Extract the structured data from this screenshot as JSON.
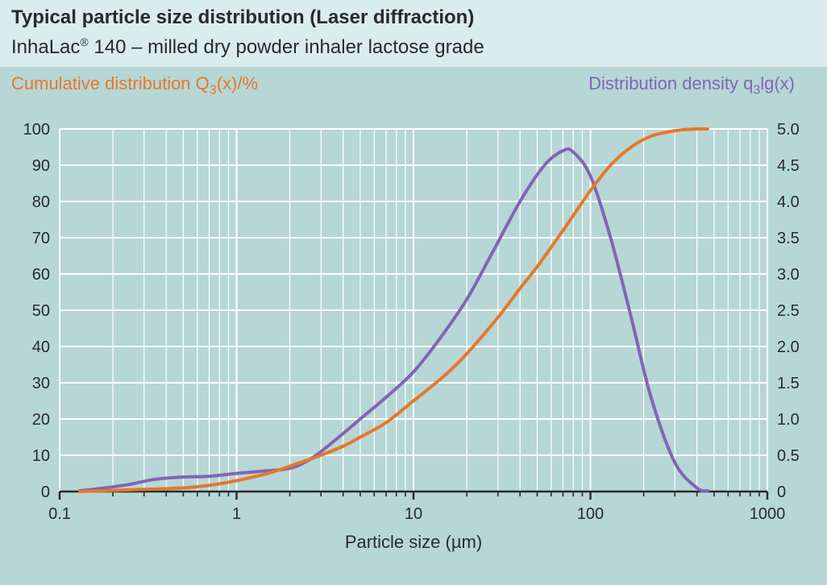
{
  "titles": {
    "line1": "Typical particle size distribution (Laser diffraction)",
    "line2_pre": "InhaLac",
    "line2_reg": "®",
    "line2_post": " 140 – milled dry powder inhaler lactose grade"
  },
  "axis_titles": {
    "left_pre": "Cumulative distribution Q",
    "left_sub": "3",
    "left_post": "(x)/%",
    "right_pre": "Distribution density q",
    "right_sub": "3",
    "right_post": "lg(x)",
    "x": "Particle size (µm)"
  },
  "chart": {
    "type": "line",
    "background_color": "#b6d7d6",
    "plot_background_color": "#b6d7d6",
    "grid_color": "#ffffff",
    "axis_color": "#2a2a2a",
    "tick_font_size": 20,
    "x": {
      "scale": "log",
      "min": 0.1,
      "max": 1000,
      "ticks": [
        0.1,
        1,
        10,
        100,
        1000
      ],
      "tick_labels": [
        "0.1",
        "1",
        "10",
        "100",
        "1000"
      ]
    },
    "y_left": {
      "min": 0,
      "max": 100,
      "ticks": [
        0,
        10,
        20,
        30,
        40,
        50,
        60,
        70,
        80,
        90,
        100
      ],
      "tick_labels": [
        "0",
        "10",
        "20",
        "30",
        "40",
        "50",
        "60",
        "70",
        "80",
        "90",
        "100"
      ]
    },
    "y_right": {
      "min": 0,
      "max": 5.0,
      "ticks": [
        0,
        0.5,
        1.0,
        1.5,
        2.0,
        2.5,
        3.0,
        3.5,
        4.0,
        4.5,
        5.0
      ],
      "tick_labels": [
        "0",
        "0.5",
        "1.0",
        "1.5",
        "2.0",
        "2.5",
        "3.0",
        "3.5",
        "4.0",
        "4.5",
        "5.0"
      ]
    },
    "series": {
      "cumulative": {
        "color": "#e67828",
        "line_width": 4,
        "axis": "left",
        "points": [
          [
            0.13,
            0
          ],
          [
            0.2,
            0.3
          ],
          [
            0.3,
            0.6
          ],
          [
            0.5,
            1.0
          ],
          [
            0.7,
            1.7
          ],
          [
            1.0,
            3.0
          ],
          [
            1.5,
            5.0
          ],
          [
            2.0,
            7.0
          ],
          [
            3.0,
            10.0
          ],
          [
            4.0,
            12.5
          ],
          [
            5.0,
            15.0
          ],
          [
            7.0,
            19.0
          ],
          [
            10.0,
            25.0
          ],
          [
            15.0,
            32.0
          ],
          [
            20.0,
            38.0
          ],
          [
            30.0,
            48.0
          ],
          [
            40.0,
            56.0
          ],
          [
            50.0,
            62.0
          ],
          [
            70.0,
            72.0
          ],
          [
            100.0,
            83.0
          ],
          [
            130.0,
            90.0
          ],
          [
            170.0,
            95.0
          ],
          [
            220.0,
            98.0
          ],
          [
            300.0,
            99.5
          ],
          [
            400.0,
            100.0
          ],
          [
            460.0,
            100.0
          ]
        ]
      },
      "density": {
        "color": "#8265b5",
        "line_width": 4,
        "axis": "right",
        "points": [
          [
            0.13,
            0.01
          ],
          [
            0.18,
            0.05
          ],
          [
            0.25,
            0.1
          ],
          [
            0.35,
            0.17
          ],
          [
            0.5,
            0.2
          ],
          [
            0.7,
            0.21
          ],
          [
            1.0,
            0.25
          ],
          [
            1.4,
            0.28
          ],
          [
            2.0,
            0.32
          ],
          [
            2.5,
            0.42
          ],
          [
            3.0,
            0.55
          ],
          [
            4.0,
            0.8
          ],
          [
            5.0,
            1.0
          ],
          [
            7.0,
            1.3
          ],
          [
            10.0,
            1.65
          ],
          [
            14.0,
            2.1
          ],
          [
            20.0,
            2.65
          ],
          [
            28.0,
            3.3
          ],
          [
            40.0,
            4.0
          ],
          [
            55.0,
            4.5
          ],
          [
            70.0,
            4.7
          ],
          [
            80.0,
            4.68
          ],
          [
            100.0,
            4.35
          ],
          [
            130.0,
            3.5
          ],
          [
            170.0,
            2.4
          ],
          [
            220.0,
            1.3
          ],
          [
            300.0,
            0.4
          ],
          [
            400.0,
            0.05
          ],
          [
            460.0,
            0.01
          ]
        ]
      }
    }
  }
}
